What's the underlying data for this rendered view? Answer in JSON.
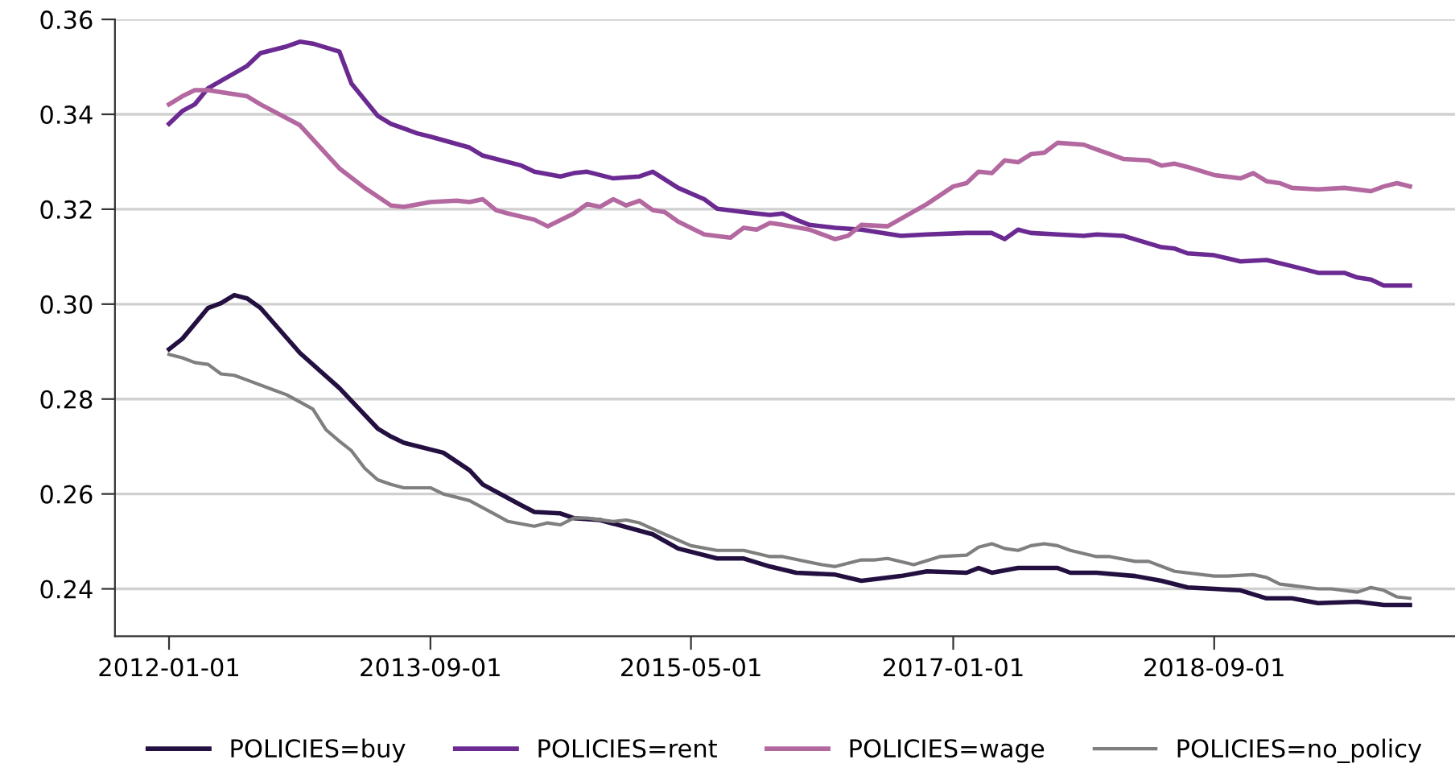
{
  "chart_data": {
    "type": "line",
    "xlim": [
      "2011-08-28",
      "2020-03-15"
    ],
    "xticks": [
      "2012-01-01",
      "2013-09-01",
      "2015-05-01",
      "2017-01-01",
      "2018-09-01"
    ],
    "ylim": [
      0.23,
      0.36
    ],
    "yticks": [
      0.24,
      0.26,
      0.28,
      {
        "value": 0.3,
        "label": "0.30"
      },
      0.32,
      0.34,
      0.36
    ],
    "grid": "y",
    "legend": "bottom",
    "line_style": "solid",
    "marker": "none",
    "series": [
      {
        "name": "POLICIES=buy",
        "color": "#231040",
        "x": [
          "2012-01",
          "2012-02",
          "2012-04",
          "2012-05",
          "2012-06",
          "2012-07",
          "2012-08",
          "2012-11",
          "2013-02",
          "2013-05",
          "2013-06",
          "2013-07",
          "2013-10",
          "2013-12",
          "2014-01",
          "2014-04",
          "2014-05",
          "2014-07",
          "2014-08",
          "2014-10",
          "2015-02",
          "2015-04",
          "2015-07",
          "2015-09",
          "2015-11",
          "2016-01",
          "2016-04",
          "2016-06",
          "2016-09",
          "2016-11",
          "2017-02",
          "2017-03",
          "2017-04",
          "2017-06",
          "2017-09",
          "2017-10",
          "2017-12",
          "2018-03",
          "2018-05",
          "2018-07",
          "2018-09",
          "2018-11",
          "2019-01",
          "2019-03",
          "2019-05",
          "2019-08",
          "2019-10",
          "2019-12"
        ],
        "values": [
          0.2905,
          0.2927,
          0.2992,
          0.3002,
          0.3019,
          0.3012,
          0.2992,
          0.2897,
          0.2823,
          0.2738,
          0.2721,
          0.2708,
          0.2687,
          0.265,
          0.262,
          0.2576,
          0.2562,
          0.2559,
          0.2549,
          0.2545,
          0.2515,
          0.2485,
          0.2464,
          0.2464,
          0.2447,
          0.2434,
          0.243,
          0.2417,
          0.2427,
          0.2437,
          0.2434,
          0.2444,
          0.2434,
          0.2444,
          0.2444,
          0.2434,
          0.2434,
          0.2427,
          0.2417,
          0.2403,
          0.24,
          0.2397,
          0.238,
          0.238,
          0.237,
          0.2373,
          0.2366,
          0.2366
        ]
      },
      {
        "name": "POLICIES=rent",
        "color": "#6b2a92",
        "x": [
          "2012-01",
          "2012-02",
          "2012-03",
          "2012-04",
          "2012-07",
          "2012-08",
          "2012-10",
          "2012-11",
          "2012-12",
          "2013-02",
          "2013-03",
          "2013-05",
          "2013-06",
          "2013-08",
          "2013-09",
          "2013-12",
          "2014-01",
          "2014-04",
          "2014-05",
          "2014-07",
          "2014-08",
          "2014-09",
          "2014-11",
          "2015-01",
          "2015-02",
          "2015-04",
          "2015-06",
          "2015-07",
          "2015-09",
          "2015-11",
          "2015-12",
          "2016-01",
          "2016-02",
          "2016-04",
          "2016-06",
          "2016-09",
          "2016-11",
          "2017-02",
          "2017-04",
          "2017-05",
          "2017-06",
          "2017-07",
          "2017-09",
          "2017-11",
          "2017-12",
          "2018-02",
          "2018-05",
          "2018-06",
          "2018-07",
          "2018-09",
          "2018-11",
          "2019-01",
          "2019-03",
          "2019-05",
          "2019-07",
          "2019-08",
          "2019-09",
          "2019-10",
          "2019-12"
        ],
        "values": [
          0.338,
          0.3407,
          0.3421,
          0.3455,
          0.3502,
          0.3529,
          0.3543,
          0.3553,
          0.3549,
          0.3532,
          0.3465,
          0.3397,
          0.338,
          0.336,
          0.3353,
          0.333,
          0.3313,
          0.3292,
          0.3279,
          0.3269,
          0.3276,
          0.3279,
          0.3265,
          0.3269,
          0.3279,
          0.3245,
          0.3221,
          0.3201,
          0.3194,
          0.3188,
          0.3191,
          0.3178,
          0.3167,
          0.3161,
          0.3157,
          0.3144,
          0.3147,
          0.315,
          0.315,
          0.3137,
          0.3157,
          0.315,
          0.3147,
          0.3144,
          0.3147,
          0.3144,
          0.312,
          0.3117,
          0.3107,
          0.3103,
          0.309,
          0.3093,
          0.308,
          0.3066,
          0.3066,
          0.3056,
          0.3052,
          0.3039,
          0.3039
        ]
      },
      {
        "name": "POLICIES=wage",
        "color": "#b368a0",
        "x": [
          "2012-01",
          "2012-02",
          "2012-03",
          "2012-04",
          "2012-07",
          "2012-08",
          "2012-11",
          "2013-02",
          "2013-04",
          "2013-06",
          "2013-07",
          "2013-09",
          "2013-11",
          "2013-12",
          "2014-01",
          "2014-02",
          "2014-03",
          "2014-05",
          "2014-06",
          "2014-08",
          "2014-09",
          "2014-10",
          "2014-11",
          "2014-12",
          "2015-01",
          "2015-02",
          "2015-03",
          "2015-04",
          "2015-06",
          "2015-08",
          "2015-09",
          "2015-10",
          "2015-11",
          "2015-12",
          "2016-02",
          "2016-04",
          "2016-05",
          "2016-06",
          "2016-08",
          "2016-11",
          "2017-01",
          "2017-02",
          "2017-03",
          "2017-04",
          "2017-05",
          "2017-06",
          "2017-07",
          "2017-08",
          "2017-09",
          "2017-11",
          "2017-12",
          "2018-02",
          "2018-04",
          "2018-05",
          "2018-06",
          "2018-07",
          "2018-09",
          "2018-11",
          "2018-12",
          "2019-01",
          "2019-02",
          "2019-03",
          "2019-05",
          "2019-07",
          "2019-09",
          "2019-10",
          "2019-11",
          "2019-12"
        ],
        "values": [
          0.3421,
          0.3438,
          0.3451,
          0.3451,
          0.3438,
          0.3421,
          0.3377,
          0.3286,
          0.3245,
          0.3208,
          0.3205,
          0.3215,
          0.3218,
          0.3215,
          0.3221,
          0.3198,
          0.3191,
          0.3178,
          0.3164,
          0.3191,
          0.3211,
          0.3205,
          0.3221,
          0.3208,
          0.3218,
          0.3198,
          0.3194,
          0.3174,
          0.3147,
          0.314,
          0.3161,
          0.3157,
          0.3171,
          0.3167,
          0.3157,
          0.3137,
          0.3144,
          0.3167,
          0.3164,
          0.3211,
          0.3248,
          0.3255,
          0.3279,
          0.3276,
          0.3303,
          0.3299,
          0.3316,
          0.3319,
          0.334,
          0.3336,
          0.3326,
          0.3306,
          0.3303,
          0.3292,
          0.3296,
          0.3289,
          0.3272,
          0.3265,
          0.3276,
          0.3259,
          0.3255,
          0.3245,
          0.3242,
          0.3245,
          0.3238,
          0.3248,
          0.3255,
          0.3248
        ]
      },
      {
        "name": "POLICIES=no_policy",
        "color": "#7f7f7f",
        "x": [
          "2012-01",
          "2012-02",
          "2012-03",
          "2012-04",
          "2012-05",
          "2012-06",
          "2012-07",
          "2012-09",
          "2012-10",
          "2012-12",
          "2013-01",
          "2013-02",
          "2013-03",
          "2013-04",
          "2013-05",
          "2013-06",
          "2013-07",
          "2013-09",
          "2013-10",
          "2013-12",
          "2014-02",
          "2014-03",
          "2014-05",
          "2014-06",
          "2014-07",
          "2014-08",
          "2014-09",
          "2014-11",
          "2014-12",
          "2015-01",
          "2015-03",
          "2015-05",
          "2015-07",
          "2015-09",
          "2015-11",
          "2015-12",
          "2016-03",
          "2016-04",
          "2016-06",
          "2016-07",
          "2016-08",
          "2016-10",
          "2016-12",
          "2017-02",
          "2017-03",
          "2017-04",
          "2017-05",
          "2017-06",
          "2017-07",
          "2017-08",
          "2017-09",
          "2017-10",
          "2017-12",
          "2018-01",
          "2018-03",
          "2018-04",
          "2018-06",
          "2018-09",
          "2018-10",
          "2018-12",
          "2019-01",
          "2019-02",
          "2019-03",
          "2019-05",
          "2019-06",
          "2019-08",
          "2019-09",
          "2019-10",
          "2019-11",
          "2019-12"
        ],
        "values": [
          0.2894,
          0.2887,
          0.2877,
          0.2873,
          0.2853,
          0.285,
          0.284,
          0.2819,
          0.2809,
          0.2779,
          0.2735,
          0.2711,
          0.2691,
          0.2654,
          0.263,
          0.262,
          0.2613,
          0.2613,
          0.26,
          0.2586,
          0.2556,
          0.2542,
          0.2532,
          0.2539,
          0.2535,
          0.2549,
          0.2549,
          0.2542,
          0.2545,
          0.2539,
          0.2515,
          0.2491,
          0.2481,
          0.2481,
          0.2468,
          0.2468,
          0.2451,
          0.2447,
          0.2461,
          0.2461,
          0.2464,
          0.2451,
          0.2468,
          0.2471,
          0.2488,
          0.2495,
          0.2485,
          0.2481,
          0.2491,
          0.2495,
          0.2491,
          0.2481,
          0.2468,
          0.2468,
          0.2458,
          0.2458,
          0.2437,
          0.2427,
          0.2427,
          0.243,
          0.2424,
          0.241,
          0.2407,
          0.24,
          0.24,
          0.2393,
          0.2403,
          0.2397,
          0.2383,
          0.238
        ]
      }
    ]
  }
}
